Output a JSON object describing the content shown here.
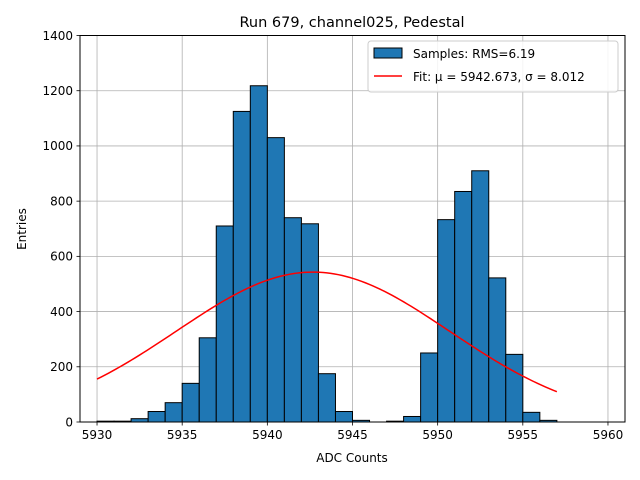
{
  "chart_data": {
    "type": "bar",
    "title": "Run 679, channel025, Pedestal",
    "xlabel": "ADC Counts",
    "ylabel": "Entries",
    "xlim": [
      5929,
      5961
    ],
    "ylim": [
      0,
      1400
    ],
    "grid": true,
    "legend_position": "top-right",
    "xticks": [
      5930,
      5935,
      5940,
      5945,
      5950,
      5955,
      5960
    ],
    "yticks": [
      0,
      200,
      400,
      600,
      800,
      1000,
      1200,
      1400
    ],
    "bin_width": 1,
    "histogram": {
      "name": "Samples: RMS=6.19",
      "color": "#1f77b4",
      "edgecolor": "#000000",
      "bins": [
        {
          "x": 5930,
          "value": 3
        },
        {
          "x": 5931,
          "value": 3
        },
        {
          "x": 5932,
          "value": 12
        },
        {
          "x": 5933,
          "value": 38
        },
        {
          "x": 5934,
          "value": 70
        },
        {
          "x": 5935,
          "value": 140
        },
        {
          "x": 5936,
          "value": 305
        },
        {
          "x": 5937,
          "value": 710
        },
        {
          "x": 5938,
          "value": 1125
        },
        {
          "x": 5939,
          "value": 1218
        },
        {
          "x": 5940,
          "value": 1030
        },
        {
          "x": 5941,
          "value": 740
        },
        {
          "x": 5942,
          "value": 718
        },
        {
          "x": 5943,
          "value": 175
        },
        {
          "x": 5944,
          "value": 38
        },
        {
          "x": 5945,
          "value": 6
        },
        {
          "x": 5946,
          "value": 0
        },
        {
          "x": 5947,
          "value": 3
        },
        {
          "x": 5948,
          "value": 20
        },
        {
          "x": 5949,
          "value": 250
        },
        {
          "x": 5950,
          "value": 733
        },
        {
          "x": 5951,
          "value": 835
        },
        {
          "x": 5952,
          "value": 910
        },
        {
          "x": 5953,
          "value": 522
        },
        {
          "x": 5954,
          "value": 245
        },
        {
          "x": 5955,
          "value": 35
        },
        {
          "x": 5956,
          "value": 6
        }
      ]
    },
    "fit": {
      "name": "Fit: μ = 5942.673, σ = 8.012",
      "color": "#ff0000",
      "mu": 5942.673,
      "sigma": 8.012,
      "amplitude": 543,
      "x_range": [
        5930,
        5957
      ]
    }
  }
}
